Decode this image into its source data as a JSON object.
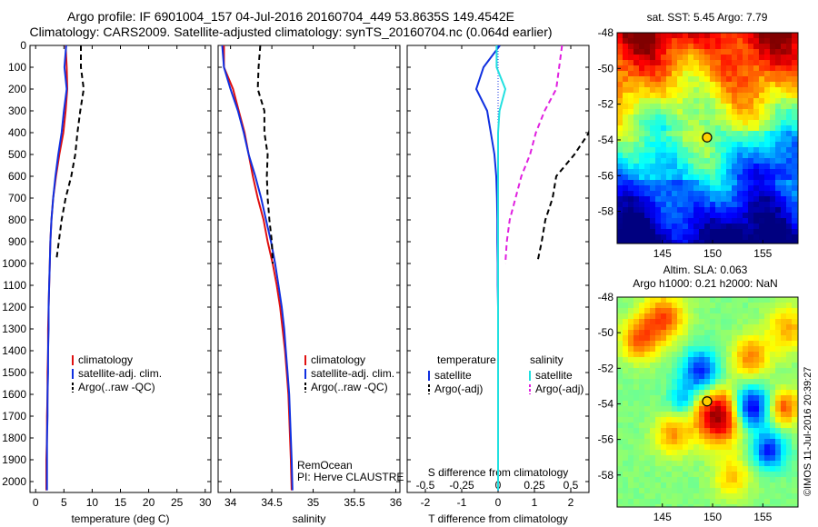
{
  "title_line1": "Argo profile: IF 6901004_157 04-Jul-2016 20160704_449 53.8635S 149.4542E",
  "title_line2": "Climatology: CARS2009. Satellite-adjusted climatology: synTS_20160704.nc (0.064d earlier)",
  "colors": {
    "climatology": "#e01010",
    "satellite": "#1030e0",
    "argo": "#000000",
    "satellite_salinity": "#22e0e0",
    "argo_salinity": "#e020e0"
  },
  "chart_data": [
    {
      "id": "temperature",
      "type": "line",
      "xlabel": "temperature (deg C)",
      "ylabel": "",
      "xlim": [
        -1,
        31
      ],
      "ylim": [
        2050,
        0
      ],
      "xticks": [
        0,
        5,
        10,
        15,
        20,
        25,
        30
      ],
      "xtick_labels": [
        "0",
        "5",
        "10",
        "15",
        "20",
        "25",
        "30"
      ],
      "yticks": [
        0,
        100,
        200,
        300,
        400,
        500,
        600,
        700,
        800,
        900,
        1000,
        1100,
        1200,
        1300,
        1400,
        1500,
        1600,
        1700,
        1800,
        1900,
        2000
      ],
      "ytick_labels": [
        "0",
        "100",
        "200",
        "300",
        "400",
        "500",
        "600",
        "700",
        "800",
        "900",
        "1000",
        "1100",
        "1200",
        "1300",
        "1400",
        "1500",
        "1600",
        "1700",
        "1800",
        "1900",
        "2000"
      ],
      "legend_position": "bottom-right",
      "series": [
        {
          "name": "climatology",
          "style": "solid",
          "color": "#e01010",
          "x": [
            5.3,
            5.5,
            5.6,
            5.3,
            4.9,
            4.2,
            3.6,
            3.1,
            2.8,
            2.6,
            2.5,
            2.4,
            2.3,
            2.2,
            2.2,
            2.1,
            2.1,
            2.0,
            2.0,
            1.9,
            1.9
          ],
          "y": [
            0,
            100,
            200,
            300,
            400,
            500,
            600,
            700,
            800,
            900,
            1000,
            1100,
            1200,
            1300,
            1400,
            1500,
            1600,
            1700,
            1800,
            1900,
            2040
          ]
        },
        {
          "name": "satellite-adj. clim.",
          "style": "solid",
          "color": "#1030e0",
          "x": [
            5.4,
            5.1,
            5.5,
            5.0,
            4.6,
            4.0,
            3.5,
            3.1,
            2.8,
            2.6,
            2.5,
            2.4,
            2.3,
            2.3,
            2.2,
            2.2,
            2.1,
            2.1,
            2.0,
            2.0,
            2.0
          ],
          "y": [
            0,
            100,
            200,
            300,
            400,
            500,
            600,
            700,
            800,
            900,
            1000,
            1100,
            1200,
            1300,
            1400,
            1500,
            1600,
            1700,
            1800,
            1900,
            2040
          ]
        },
        {
          "name": "Argo(..raw -QC)",
          "style": "dashed",
          "color": "#000000",
          "x": [
            8.0,
            8.0,
            8.5,
            7.9,
            7.4,
            7.0,
            6.3,
            5.3,
            4.6,
            4.1,
            3.7
          ],
          "y": [
            0,
            100,
            200,
            300,
            400,
            500,
            600,
            700,
            800,
            900,
            980
          ]
        }
      ]
    },
    {
      "id": "salinity",
      "type": "line",
      "xlabel": "salinity",
      "ylabel": "",
      "xlim": [
        33.85,
        36.05
      ],
      "ylim": [
        2050,
        0
      ],
      "xticks": [
        34,
        34.5,
        35,
        35.5,
        36
      ],
      "xtick_labels": [
        "34",
        "34.5",
        "35",
        "35.5",
        "36"
      ],
      "legend_position": "bottom-right",
      "notes": [
        "RemOcean",
        "PI: Herve CLAUSTRE"
      ],
      "series": [
        {
          "name": "climatology",
          "style": "solid",
          "color": "#e01010",
          "x": [
            33.92,
            33.92,
            34.03,
            34.1,
            34.17,
            34.22,
            34.27,
            34.33,
            34.4,
            34.45,
            34.51,
            34.56,
            34.6,
            34.63,
            34.66,
            34.68,
            34.7,
            34.71,
            34.72,
            34.73,
            34.74
          ],
          "y": [
            0,
            100,
            200,
            300,
            400,
            500,
            600,
            700,
            800,
            900,
            1000,
            1100,
            1200,
            1300,
            1400,
            1500,
            1600,
            1700,
            1800,
            1900,
            2040
          ]
        },
        {
          "name": "satellite-adj. clim.",
          "style": "solid",
          "color": "#1030e0",
          "x": [
            33.9,
            33.92,
            34.0,
            34.09,
            34.16,
            34.22,
            34.3,
            34.37,
            34.43,
            34.49,
            34.54,
            34.58,
            34.62,
            34.65,
            34.67,
            34.69,
            34.71,
            34.72,
            34.73,
            34.74,
            34.75
          ],
          "y": [
            0,
            100,
            200,
            300,
            400,
            500,
            600,
            700,
            800,
            900,
            1000,
            1100,
            1200,
            1300,
            1400,
            1500,
            1600,
            1700,
            1800,
            1900,
            2040
          ]
        },
        {
          "name": "Argo(..raw -QC)",
          "style": "dashed",
          "color": "#000000",
          "x": [
            34.36,
            34.34,
            34.33,
            34.41,
            34.41,
            34.45,
            34.44,
            34.45,
            34.47,
            34.5,
            34.51
          ],
          "y": [
            0,
            100,
            200,
            300,
            400,
            500,
            600,
            700,
            800,
            900,
            1000
          ]
        }
      ]
    },
    {
      "id": "difference",
      "type": "line",
      "xlabel": "T difference from climatology",
      "ylabel": "",
      "secondary_xlabel": "S difference from climatology",
      "xlim": [
        -2.5,
        2.5
      ],
      "ylim": [
        2050,
        0
      ],
      "xticks": [
        -2,
        -1,
        0,
        1,
        2
      ],
      "xtick_labels": [
        "-2",
        "-1",
        "0",
        "1",
        "2"
      ],
      "secondary_xticks": [
        -0.5,
        -0.25,
        0,
        0.25,
        0.5
      ],
      "secondary_xtick_labels": [
        "-0.5",
        "-0.25",
        "0",
        "0.25",
        "0.5"
      ],
      "legend_position": "bottom-center",
      "legend_headers": [
        "temperature",
        "salinity"
      ],
      "series": [
        {
          "name": "satellite",
          "group": "temperature",
          "style": "solid",
          "color": "#1030e0",
          "x": [
            0.05,
            -0.4,
            -0.6,
            -0.3,
            -0.2,
            -0.1,
            -0.05,
            -0.03,
            -0.02,
            -0.02,
            -0.01,
            -0.01,
            0,
            0,
            0,
            0,
            0,
            0,
            0,
            0,
            0
          ],
          "y": [
            0,
            100,
            200,
            300,
            400,
            500,
            600,
            700,
            800,
            900,
            1000,
            1100,
            1200,
            1300,
            1400,
            1500,
            1600,
            1700,
            1800,
            1900,
            2040
          ]
        },
        {
          "name": "Argo(-adj)",
          "group": "temperature",
          "style": "dashed",
          "color": "#000000",
          "x": [
            2.7,
            2.6,
            2.9,
            2.6,
            2.5,
            2.1,
            1.6,
            1.5,
            1.3,
            1.2,
            1.1
          ],
          "y": [
            0,
            100,
            200,
            300,
            400,
            500,
            600,
            700,
            800,
            900,
            980
          ]
        },
        {
          "name": "satellite",
          "group": "salinity",
          "style": "solid",
          "color": "#22e0e0",
          "x": [
            -0.01,
            -0.01,
            0.05,
            0.01,
            0.0,
            0.0,
            0.0,
            0.0,
            0.0,
            0.0,
            0.0,
            0.0,
            0.0,
            0.0,
            0.0,
            0.0,
            0.0,
            0.0,
            0.0,
            0.0,
            0.0
          ],
          "y": [
            0,
            100,
            200,
            300,
            400,
            500,
            600,
            700,
            800,
            900,
            1000,
            1100,
            1200,
            1300,
            1400,
            1500,
            1600,
            1700,
            1800,
            1900,
            2040
          ]
        },
        {
          "name": "Argo(-adj)",
          "group": "salinity",
          "style": "dashed",
          "color": "#e020e0",
          "x": [
            0.44,
            0.42,
            0.4,
            0.32,
            0.26,
            0.22,
            0.16,
            0.12,
            0.08,
            0.06,
            0.05
          ],
          "y": [
            0,
            100,
            200,
            300,
            400,
            500,
            600,
            700,
            800,
            900,
            1000
          ]
        }
      ]
    },
    {
      "id": "sst_map",
      "type": "heatmap",
      "title": "sat. SST: 5.45  Argo: 7.79",
      "xlim": [
        140.5,
        158.5
      ],
      "ylim": [
        -59.8,
        -48
      ],
      "xticks": [
        145,
        150,
        155
      ],
      "xtick_labels": [
        "145",
        "150",
        "155"
      ],
      "yticks": [
        -48,
        -50,
        -52,
        -54,
        -56,
        -58
      ],
      "ytick_labels": [
        "-48",
        "-50",
        "-52",
        "-54",
        "-56",
        "-58"
      ],
      "marker": {
        "lon": 149.45,
        "lat": -53.86
      }
    },
    {
      "id": "sla_map",
      "type": "heatmap",
      "title": "Altim. SLA: 0.063",
      "subtitle": "Argo h1000: 0.21 h2000: NaN",
      "xlim": [
        140.5,
        158.5
      ],
      "ylim": [
        -59.8,
        -48
      ],
      "xticks": [
        145,
        150,
        155
      ],
      "xtick_labels": [
        "145",
        "150",
        "155"
      ],
      "yticks": [
        -48,
        -50,
        -52,
        -54,
        -56,
        -58
      ],
      "ytick_labels": [
        "-48",
        "-50",
        "-52",
        "-54",
        "-56",
        "-58"
      ],
      "marker": {
        "lon": 149.45,
        "lat": -53.86
      }
    }
  ],
  "watermark": "©IMOS 11-Jul-2016 20:39:27"
}
